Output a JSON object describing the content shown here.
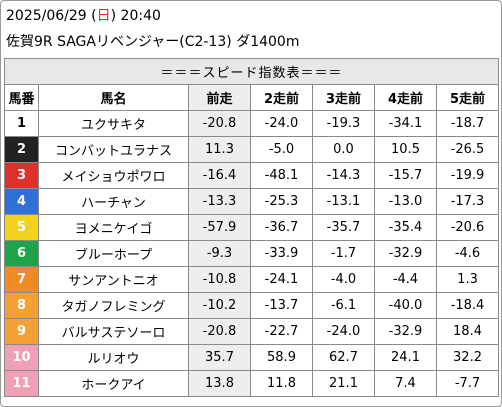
{
  "header": {
    "date": "2025/06/29",
    "weekday_open": " (",
    "weekday": "日",
    "weekday_close": ")",
    "time": " 20:40",
    "race_line": "佐賀9R SAGAリベンジャー(C2-13) ダ1400m"
  },
  "table": {
    "title": "＝＝＝スピード指数表＝＝＝",
    "columns": [
      "馬番",
      "馬名",
      "前走",
      "2走前",
      "3走前",
      "4走前",
      "5走前"
    ],
    "rows": [
      {
        "num": "1",
        "name": "ユクサキタ",
        "v": [
          "-20.8",
          "-24.0",
          "-19.3",
          "-34.1",
          "-18.7"
        ]
      },
      {
        "num": "2",
        "name": "コンバットユラナス",
        "v": [
          "11.3",
          "-5.0",
          "0.0",
          "10.5",
          "-26.5"
        ]
      },
      {
        "num": "3",
        "name": "メイショウポワロ",
        "v": [
          "-16.4",
          "-48.1",
          "-14.3",
          "-15.7",
          "-19.9"
        ]
      },
      {
        "num": "4",
        "name": "ハーチャン",
        "v": [
          "-13.3",
          "-25.3",
          "-13.1",
          "-13.0",
          "-17.3"
        ]
      },
      {
        "num": "5",
        "name": "ヨメニケイゴ",
        "v": [
          "-57.9",
          "-36.7",
          "-35.7",
          "-35.4",
          "-20.6"
        ]
      },
      {
        "num": "6",
        "name": "ブルーホープ",
        "v": [
          "-9.3",
          "-33.9",
          "-1.7",
          "-32.9",
          "-4.6"
        ]
      },
      {
        "num": "7",
        "name": "サンアントニオ",
        "v": [
          "-10.8",
          "-24.1",
          "-4.0",
          "-4.4",
          "1.3"
        ]
      },
      {
        "num": "8",
        "name": "タガノフレミング",
        "v": [
          "-10.2",
          "-13.7",
          "-6.1",
          "-40.0",
          "-18.4"
        ]
      },
      {
        "num": "9",
        "name": "バルサステソーロ",
        "v": [
          "-20.8",
          "-22.7",
          "-24.0",
          "-32.9",
          "18.4"
        ]
      },
      {
        "num": "10",
        "name": "ルリオウ",
        "v": [
          "35.7",
          "58.9",
          "62.7",
          "24.1",
          "32.2"
        ]
      },
      {
        "num": "11",
        "name": "ホークアイ",
        "v": [
          "13.8",
          "11.8",
          "21.1",
          "7.4",
          "-7.7"
        ]
      }
    ]
  },
  "colors": {
    "frame_1": "#ffffff",
    "frame_1_text": "#000000",
    "frame_2": "#222222",
    "frame_2_text": "#ffffff",
    "frame_3": "#e0302c",
    "frame_3_text": "#ffffff",
    "frame_4": "#2e6fd8",
    "frame_4_text": "#ffffff",
    "frame_5": "#f2d21a",
    "frame_5_text": "#ffffff",
    "frame_6": "#1fa24a",
    "frame_6_text": "#ffffff",
    "frame_7": "#f08a24",
    "frame_7_text": "#ffffff",
    "frame_8": "#f2a0c0",
    "frame_8_text": "#ffffff",
    "grid": "#8a8a8a",
    "title_bg": "#e8e8e8",
    "current_col_bg": "#eeeeee",
    "sunday_red": "#e0281e"
  }
}
